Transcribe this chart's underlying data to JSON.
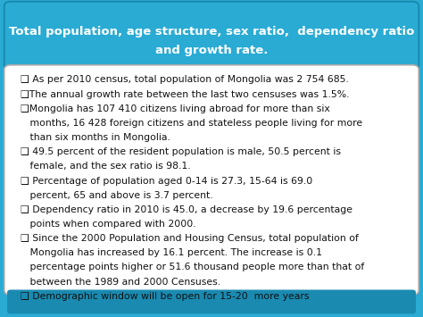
{
  "title_line1": "Total population, age structure, sex ratio,  dependency ratio",
  "title_line2": "and growth rate.",
  "title_bg": "#29ABD4",
  "title_border": "#1A8AB0",
  "outer_bg": "#29ABD4",
  "body_bg": "#FFFFFF",
  "body_border": "#AAAAAA",
  "text_color": "#111111",
  "title_color": "#FFFFFF",
  "font_size": 7.8,
  "title_font_size": 9.5,
  "bullet_lines": [
    "❑ As per 2010 census, total population of Mongolia was 2 754 685.",
    "❑The annual growth rate between the last two censuses was 1.5%.",
    "❑Mongolia has 107 410 citizens living abroad for more than six",
    "   months, 16 428 foreign citizens and stateless people living for more",
    "   than six months in Mongolia.",
    "❑ 49.5 percent of the resident population is male, 50.5 percent is",
    "   female, and the sex ratio is 98.1.",
    "❑ Percentage of population aged 0-14 is 27.3, 15-64 is 69.0",
    "   percent, 65 and above is 3.7 percent.",
    "❑ Dependency ratio in 2010 is 45.0, a decrease by 19.6 percentage",
    "   points when compared with 2000.",
    "❑ Since the 2000 Population and Housing Census, total population of",
    "   Mongolia has increased by 16.1 percent. The increase is 0.1",
    "   percentage points higher or 51.6 thousand people more than that of",
    "   between the 1989 and 2000 Censuses.",
    "❑ Demographic window will be open for 15-20  more years"
  ]
}
